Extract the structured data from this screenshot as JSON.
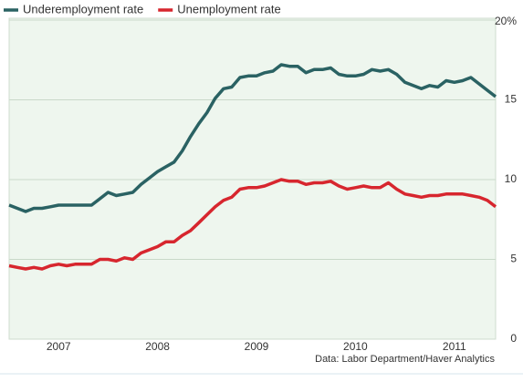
{
  "chart_data": {
    "type": "line",
    "source": "Data: Labor Department/Haver Analytics",
    "x": [
      2007,
      2007.083,
      2007.167,
      2007.25,
      2007.333,
      2007.417,
      2007.5,
      2007.583,
      2007.667,
      2007.75,
      2007.833,
      2007.917,
      2008,
      2008.083,
      2008.167,
      2008.25,
      2008.333,
      2008.417,
      2008.5,
      2008.583,
      2008.667,
      2008.75,
      2008.833,
      2008.917,
      2009,
      2009.083,
      2009.167,
      2009.25,
      2009.333,
      2009.417,
      2009.5,
      2009.583,
      2009.667,
      2009.75,
      2009.833,
      2009.917,
      2010,
      2010.083,
      2010.167,
      2010.25,
      2010.333,
      2010.417,
      2010.5,
      2010.583,
      2010.667,
      2010.75,
      2010.833,
      2010.917,
      2011,
      2011.083,
      2011.167,
      2011.25,
      2011.333,
      2011.417,
      2011.5,
      2011.583,
      2011.667,
      2011.75,
      2011.833,
      2011.917
    ],
    "series": [
      {
        "name": "Underemployment rate",
        "color": "#2a6263",
        "values": [
          8.4,
          8.2,
          8.0,
          8.2,
          8.2,
          8.3,
          8.4,
          8.4,
          8.4,
          8.4,
          8.4,
          8.8,
          9.2,
          9.0,
          9.1,
          9.2,
          9.7,
          10.1,
          10.5,
          10.8,
          11.1,
          11.8,
          12.7,
          13.5,
          14.2,
          15.1,
          15.7,
          15.8,
          16.4,
          16.5,
          16.5,
          16.7,
          16.8,
          17.2,
          17.1,
          17.1,
          16.7,
          16.9,
          16.9,
          17.0,
          16.6,
          16.5,
          16.5,
          16.6,
          16.9,
          16.8,
          16.9,
          16.6,
          16.1,
          15.9,
          15.7,
          15.9,
          15.8,
          16.2,
          16.1,
          16.2,
          16.4,
          16.0,
          15.6,
          15.2
        ]
      },
      {
        "name": "Unemployment rate",
        "color": "#d7262e",
        "values": [
          4.6,
          4.5,
          4.4,
          4.5,
          4.4,
          4.6,
          4.7,
          4.6,
          4.7,
          4.7,
          4.7,
          5.0,
          5.0,
          4.9,
          5.1,
          5.0,
          5.4,
          5.6,
          5.8,
          6.1,
          6.1,
          6.5,
          6.8,
          7.3,
          7.8,
          8.3,
          8.7,
          8.9,
          9.4,
          9.5,
          9.5,
          9.6,
          9.8,
          10.0,
          9.9,
          9.9,
          9.7,
          9.8,
          9.8,
          9.9,
          9.6,
          9.4,
          9.5,
          9.6,
          9.5,
          9.5,
          9.8,
          9.4,
          9.1,
          9.0,
          8.9,
          9.0,
          9.0,
          9.1,
          9.1,
          9.1,
          9.0,
          8.9,
          8.7,
          8.3
        ]
      }
    ],
    "xlim": [
      2007,
      2011.917
    ],
    "xticks": [
      {
        "value": 2007.5,
        "label": "2007"
      },
      {
        "value": 2008.5,
        "label": "2008"
      },
      {
        "value": 2009.5,
        "label": "2009"
      },
      {
        "value": 2010.5,
        "label": "2010"
      },
      {
        "value": 2011.5,
        "label": "2011"
      }
    ],
    "ylim": [
      0,
      20
    ],
    "yticks": [
      0,
      5,
      10,
      15,
      {
        "value": 20,
        "label": "20%"
      }
    ],
    "grid": true
  }
}
